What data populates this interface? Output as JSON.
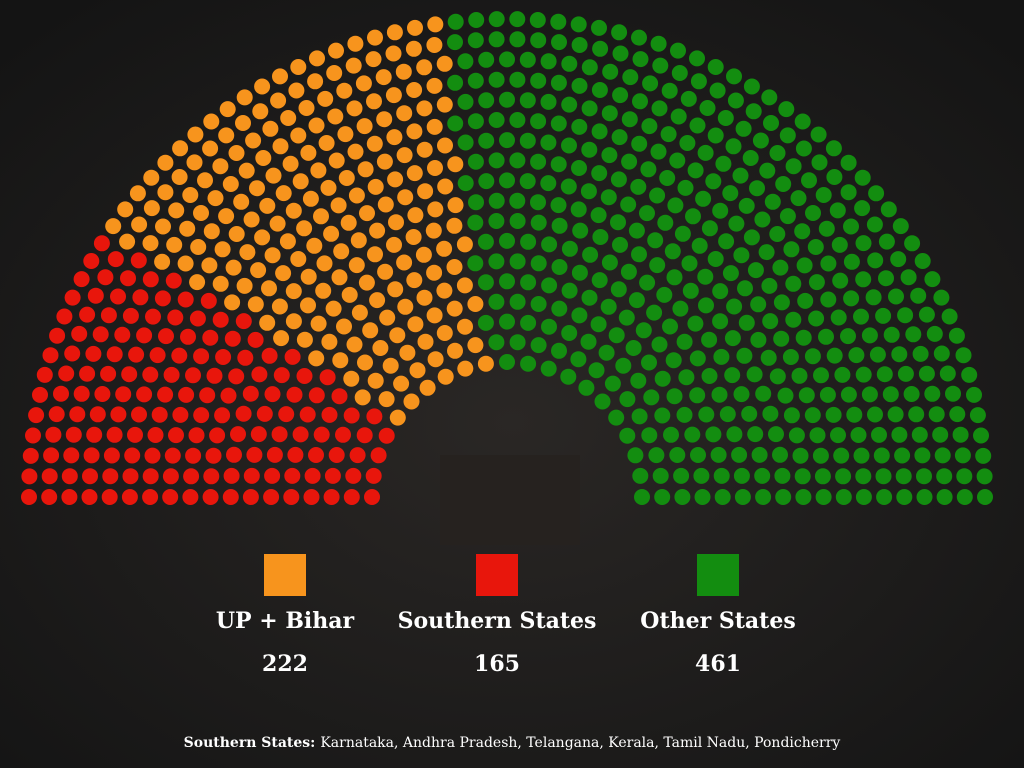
{
  "chart_data": {
    "type": "parliament",
    "categories": [
      "UP + Bihar",
      "Southern States",
      "Other States"
    ],
    "values": [
      222,
      165,
      461
    ],
    "colors": [
      "#f7941d",
      "#e8160c",
      "#138d10"
    ],
    "order": [
      1,
      0,
      2
    ],
    "footnote": {
      "label": "Southern States:",
      "text": "Karnataka, Andhra Pradesh, Telangana, Kerala, Tamil Nadu, Pondicherry"
    }
  }
}
